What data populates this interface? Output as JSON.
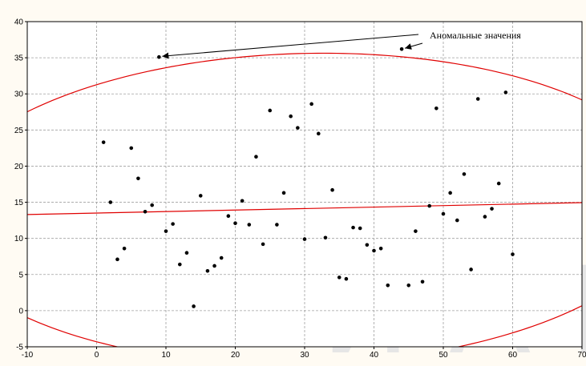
{
  "chart_data": {
    "type": "scatter",
    "title": "",
    "xlabel": "",
    "ylabel": "",
    "xlim": [
      -10,
      70
    ],
    "ylim": [
      -5,
      40
    ],
    "x_ticks": [
      -10,
      0,
      10,
      20,
      30,
      40,
      50,
      60,
      70
    ],
    "y_ticks": [
      -5,
      0,
      5,
      10,
      15,
      20,
      25,
      30,
      35,
      40
    ],
    "grid": true,
    "points": [
      {
        "x": 1,
        "y": 23.3
      },
      {
        "x": 2,
        "y": 15.0
      },
      {
        "x": 3,
        "y": 7.1
      },
      {
        "x": 4,
        "y": 8.6
      },
      {
        "x": 5,
        "y": 22.5
      },
      {
        "x": 6,
        "y": 18.3
      },
      {
        "x": 7,
        "y": 13.7
      },
      {
        "x": 8,
        "y": 14.6
      },
      {
        "x": 9,
        "y": 35.1
      },
      {
        "x": 10,
        "y": 11.0
      },
      {
        "x": 11,
        "y": 12.0
      },
      {
        "x": 12,
        "y": 6.4
      },
      {
        "x": 13,
        "y": 8.0
      },
      {
        "x": 14,
        "y": 0.6
      },
      {
        "x": 15,
        "y": 15.9
      },
      {
        "x": 16,
        "y": 5.5
      },
      {
        "x": 17,
        "y": 6.2
      },
      {
        "x": 18,
        "y": 7.3
      },
      {
        "x": 19,
        "y": 13.1
      },
      {
        "x": 20,
        "y": 12.1
      },
      {
        "x": 21,
        "y": 15.2
      },
      {
        "x": 22,
        "y": 11.9
      },
      {
        "x": 23,
        "y": 21.3
      },
      {
        "x": 24,
        "y": 9.2
      },
      {
        "x": 25,
        "y": 27.7
      },
      {
        "x": 26,
        "y": 11.9
      },
      {
        "x": 27,
        "y": 16.3
      },
      {
        "x": 28,
        "y": 26.9
      },
      {
        "x": 29,
        "y": 25.3
      },
      {
        "x": 30,
        "y": 9.9
      },
      {
        "x": 31,
        "y": 28.6
      },
      {
        "x": 32,
        "y": 24.5
      },
      {
        "x": 33,
        "y": 10.1
      },
      {
        "x": 34,
        "y": 16.7
      },
      {
        "x": 35,
        "y": 4.6
      },
      {
        "x": 36,
        "y": 4.4
      },
      {
        "x": 37,
        "y": 11.5
      },
      {
        "x": 38,
        "y": 11.4
      },
      {
        "x": 39,
        "y": 9.1
      },
      {
        "x": 40,
        "y": 8.3
      },
      {
        "x": 41,
        "y": 8.6
      },
      {
        "x": 42,
        "y": 3.5
      },
      {
        "x": 44,
        "y": 36.2
      },
      {
        "x": 45,
        "y": 3.5
      },
      {
        "x": 46,
        "y": 11.0
      },
      {
        "x": 47,
        "y": 4.0
      },
      {
        "x": 48,
        "y": 14.5
      },
      {
        "x": 49,
        "y": 28.0
      },
      {
        "x": 50,
        "y": 13.4
      },
      {
        "x": 51,
        "y": 16.3
      },
      {
        "x": 52,
        "y": 12.5
      },
      {
        "x": 53,
        "y": 18.9
      },
      {
        "x": 54,
        "y": 5.7
      },
      {
        "x": 55,
        "y": 29.3
      },
      {
        "x": 56,
        "y": 13.0
      },
      {
        "x": 57,
        "y": 14.1
      },
      {
        "x": 58,
        "y": 17.6
      },
      {
        "x": 59,
        "y": 30.2
      },
      {
        "x": 60,
        "y": 7.8
      }
    ],
    "regression_line": {
      "x": [
        -10,
        70
      ],
      "y": [
        13.3,
        14.95
      ],
      "color": "#e00000"
    },
    "confidence_ellipse": {
      "color": "#e00000",
      "center": [
        30,
        14.1
      ],
      "semi_axis_x": 53.4,
      "semi_axis_y": 21.5,
      "tilt_slope": 0.0206
    },
    "annotation": {
      "text": "Аномальные значения",
      "targets": [
        {
          "x": 9,
          "y": 35.1
        },
        {
          "x": 44,
          "y": 36.2
        }
      ]
    }
  },
  "watermark": {
    "text": "Й А ГГ",
    "color": "#e6e6e6"
  }
}
